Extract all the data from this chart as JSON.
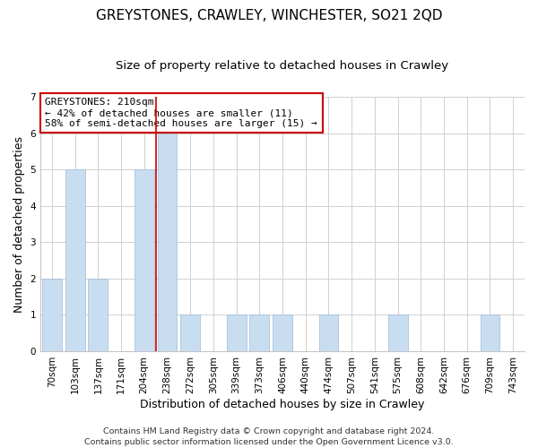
{
  "title": "GREYSTONES, CRAWLEY, WINCHESTER, SO21 2QD",
  "subtitle": "Size of property relative to detached houses in Crawley",
  "xlabel": "Distribution of detached houses by size in Crawley",
  "ylabel": "Number of detached properties",
  "bin_labels": [
    "70sqm",
    "103sqm",
    "137sqm",
    "171sqm",
    "204sqm",
    "238sqm",
    "272sqm",
    "305sqm",
    "339sqm",
    "373sqm",
    "406sqm",
    "440sqm",
    "474sqm",
    "507sqm",
    "541sqm",
    "575sqm",
    "608sqm",
    "642sqm",
    "676sqm",
    "709sqm",
    "743sqm"
  ],
  "bar_values": [
    2,
    5,
    2,
    0,
    5,
    6,
    1,
    0,
    1,
    1,
    1,
    0,
    1,
    0,
    0,
    1,
    0,
    0,
    0,
    1,
    0
  ],
  "bar_color": "#c9ddf0",
  "bar_edge_color": "#9dbbd8",
  "vline_x": 4.5,
  "vline_color": "#cc0000",
  "ylim": [
    0,
    7
  ],
  "yticks": [
    0,
    1,
    2,
    3,
    4,
    5,
    6,
    7
  ],
  "annotation_text": "GREYSTONES: 210sqm\n← 42% of detached houses are smaller (11)\n58% of semi-detached houses are larger (15) →",
  "annotation_box_color": "#ffffff",
  "annotation_box_edge": "#cc0000",
  "footer_line1": "Contains HM Land Registry data © Crown copyright and database right 2024.",
  "footer_line2": "Contains public sector information licensed under the Open Government Licence v3.0.",
  "background_color": "#ffffff",
  "grid_color": "#d0d0d0",
  "title_fontsize": 11,
  "subtitle_fontsize": 9.5,
  "axis_label_fontsize": 9,
  "tick_fontsize": 7.5,
  "annotation_fontsize": 8,
  "footer_fontsize": 6.8
}
